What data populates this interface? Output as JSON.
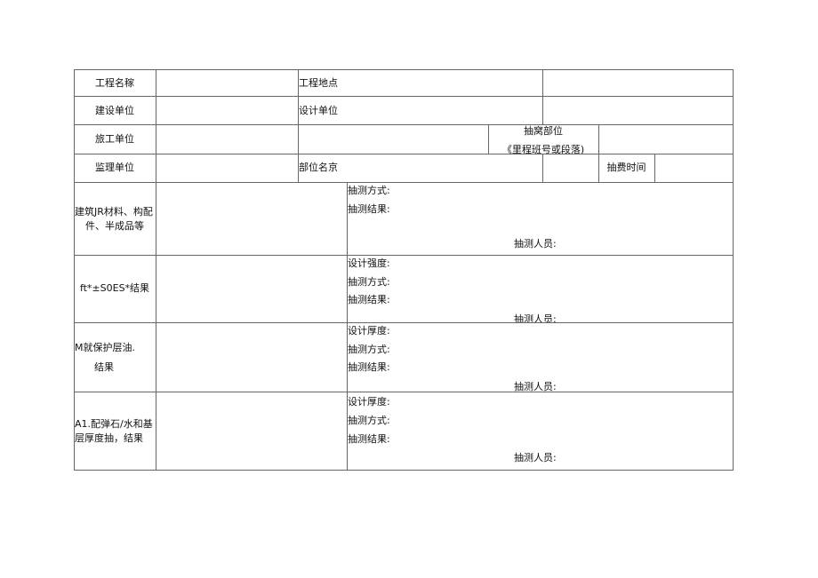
{
  "rows": {
    "project_name_label": "工程名稼",
    "project_location_label": "工程地点",
    "construction_unit_label": "建设单位",
    "design_unit_label": "设计单位",
    "contractor_unit_label": "旅工单位",
    "sampling_part_label": "抽窝部位",
    "sampling_part_sub": "《里程班号或段落)",
    "supervision_unit_label": "监理单位",
    "part_name_label": "部位名京",
    "sampling_time_label": "抽费时间"
  },
  "sections": [
    {
      "label_lines": [
        "建筑JR材料、构配",
        "件、半成品等"
      ],
      "fields": [
        "抽测方式:",
        "抽测结果:"
      ],
      "inspector": "抽测人员:"
    },
    {
      "label_lines": [
        "ft*±S0ES*结果"
      ],
      "fields": [
        "设计强度:",
        "抽测方式:",
        "抽测结果:"
      ],
      "inspector": "抽测人员:"
    },
    {
      "label_lines": [
        "M就保护层油.",
        "结果"
      ],
      "fields": [
        "设计厚度:",
        "抽测方式:",
        "抽测结果:"
      ],
      "inspector": "抽测人员:"
    },
    {
      "label_lines": [
        "A1.配弹石/水和基",
        "层厚度抽，结果"
      ],
      "fields": [
        "设计厚度:",
        "抽测方式:",
        "抽测结果:"
      ],
      "inspector": "抽测人员:"
    }
  ]
}
